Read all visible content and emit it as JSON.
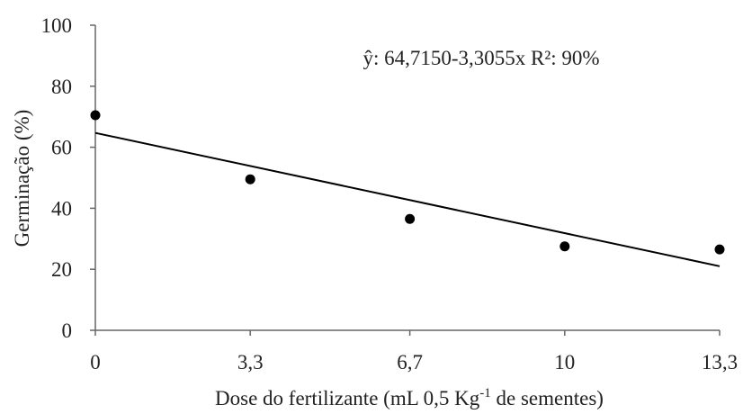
{
  "chart_data": {
    "type": "scatter",
    "annotation": "ŷ: 64,7150-3,3055x R²: 90%",
    "x_label": [
      "Dose do fertilizante (mL 0,5 Kg",
      "-1",
      " de sementes)"
    ],
    "y_label": "Germinação (%)",
    "x": [
      0,
      3.3,
      6.7,
      10,
      13.3
    ],
    "values": [
      70.5,
      49.5,
      36.5,
      27.5,
      26.5
    ],
    "color": "#000000",
    "trendline": {
      "x": [
        0,
        13.3
      ],
      "values": [
        64.7,
        21.0
      ],
      "color": "#000000"
    },
    "xlim": [
      0,
      13.3
    ],
    "xticks": [
      0,
      {
        "value": 3.3,
        "label": "3,3"
      },
      {
        "value": 6.7,
        "label": "6,7"
      },
      10,
      {
        "value": 13.3,
        "label": "13,3"
      }
    ],
    "ylim": [
      0,
      100
    ],
    "yticks": [
      0,
      20,
      40,
      60,
      80,
      100
    ],
    "grid": false
  }
}
